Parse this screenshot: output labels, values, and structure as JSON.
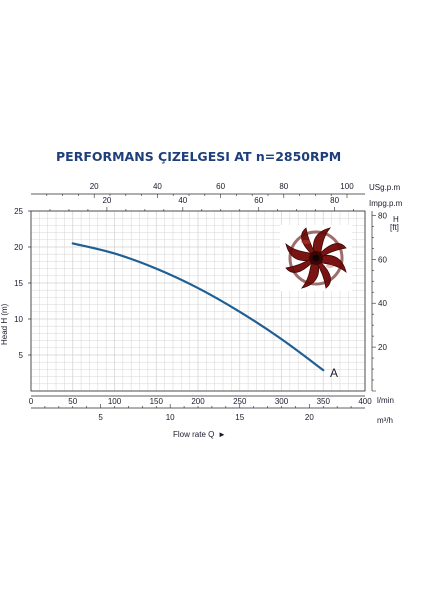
{
  "colors": {
    "title": "#1f3f7a",
    "curve": "#1f5f94",
    "grid": "#d0d0d0",
    "axis": "#2a2a2a",
    "impeller": "#7a1412"
  },
  "decoration": {
    "image": "impeller-photo"
  },
  "chart_data": {
    "type": "line",
    "title": "PERFORMANS ÇIZELGESI  AT n=2850RPM",
    "ylabel": "Head H (m)",
    "xlabel": "Flow rate Q",
    "xlabel_arrow": "►",
    "grid": true,
    "primary_x": {
      "unit": "l/min",
      "range": [
        0,
        400
      ],
      "ticks": [
        "0",
        "50",
        "100",
        "150",
        "200",
        "250",
        "300",
        "350",
        "400"
      ]
    },
    "secondary_x_bottom": {
      "unit": "m³/h",
      "range": [
        0,
        24
      ],
      "ticks": [
        "5",
        "10",
        "15",
        "20"
      ]
    },
    "top_x_us": {
      "unit": "USg.p.m",
      "range": [
        0,
        105.7
      ],
      "ticks": [
        "20",
        "40",
        "60",
        "80",
        "100"
      ]
    },
    "top_x_imp": {
      "unit": "Impg.p.m",
      "range": [
        0,
        88
      ],
      "ticks": [
        "20",
        "40",
        "60",
        "80"
      ]
    },
    "left_y": {
      "unit": "m",
      "range": [
        0,
        25
      ],
      "ticks": [
        "5",
        "10",
        "15",
        "20",
        "25"
      ]
    },
    "right_y": {
      "unit_line1": "H",
      "unit_line2": "[ft]",
      "range": [
        0,
        82
      ],
      "ticks": [
        "20",
        "40",
        "60",
        "80"
      ]
    },
    "series": [
      {
        "name": "A",
        "x": [
          50,
          100,
          150,
          200,
          250,
          300,
          350
        ],
        "y": [
          20.5,
          19.1,
          17.0,
          14.3,
          11.0,
          7.2,
          2.9
        ]
      }
    ]
  }
}
